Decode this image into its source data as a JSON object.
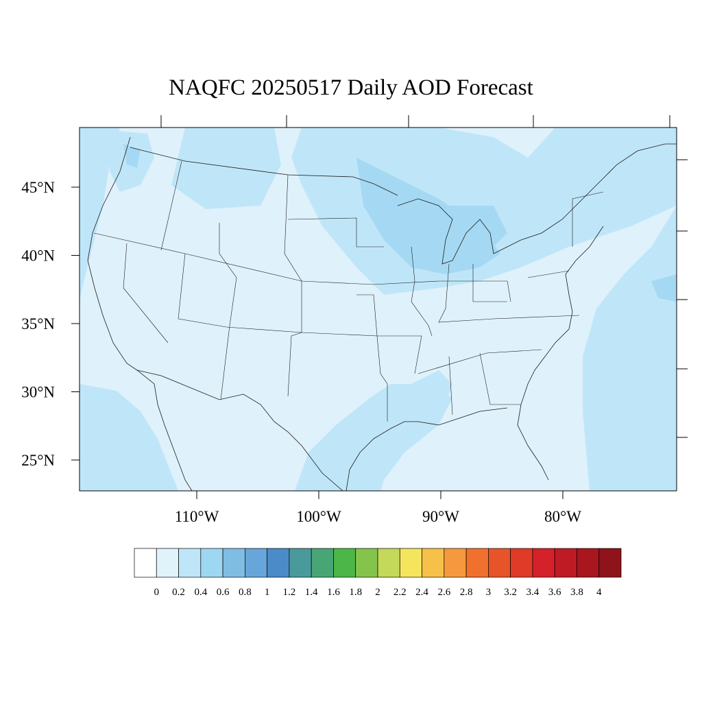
{
  "title": "NAQFC 20250517 Daily AOD Forecast",
  "map": {
    "lat_ticks": [
      {
        "value": 45,
        "label": "45°N"
      },
      {
        "value": 40,
        "label": "40°N"
      },
      {
        "value": 35,
        "label": "35°N"
      },
      {
        "value": 30,
        "label": "30°N"
      },
      {
        "value": 25,
        "label": "25°N"
      }
    ],
    "lon_ticks": [
      {
        "value": -110,
        "label": "110°W"
      },
      {
        "value": -100,
        "label": "100°W"
      },
      {
        "value": -90,
        "label": "90°W"
      },
      {
        "value": -80,
        "label": "80°W"
      }
    ],
    "colors": {
      "background_fill": "#dff1fb",
      "level_04": "#bfe6f8",
      "level_06": "#a5d9f3",
      "boundary_stroke": "#1a1a1a"
    }
  },
  "colorbar": {
    "labels": [
      "0",
      "0.2",
      "0.4",
      "0.6",
      "0.8",
      "1",
      "1.2",
      "1.4",
      "1.6",
      "1.8",
      "2",
      "2.2",
      "2.4",
      "2.6",
      "2.8",
      "3",
      "3.2",
      "3.4",
      "3.6",
      "3.8",
      "4"
    ],
    "colors": [
      "#ffffff",
      "#e0f3fb",
      "#bfe6f8",
      "#9dd7f2",
      "#80bde3",
      "#66a6da",
      "#4b8bc8",
      "#4a9a9b",
      "#48a676",
      "#4cb649",
      "#85c44c",
      "#c4d85a",
      "#f5e55c",
      "#f7c149",
      "#f6993e",
      "#f0712d",
      "#e85429",
      "#df3b28",
      "#d52129",
      "#bf1b25",
      "#a8161e",
      "#8f131a"
    ]
  }
}
